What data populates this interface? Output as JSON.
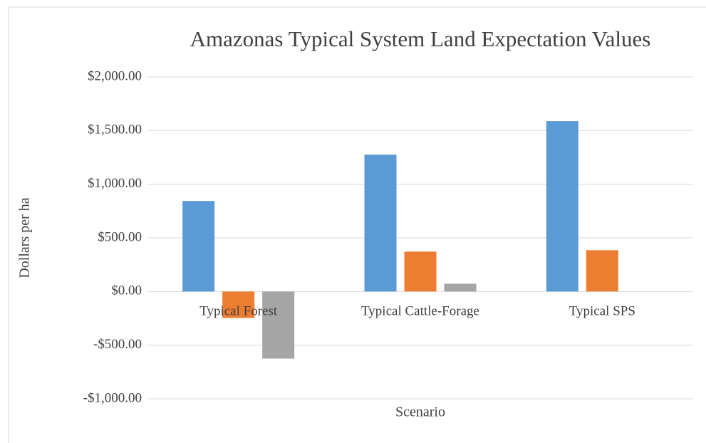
{
  "chart_data": {
    "type": "bar",
    "title": "Amazonas Typical System Land Expectation Values",
    "y_label": "Dollars per ha",
    "x_label": "Scenario",
    "categories": [
      "Typical Forest",
      "Typical Cattle-Forage",
      "Typical SPS"
    ],
    "series": [
      {
        "color": "#5b9bd5",
        "values": [
          844,
          1276,
          1588
        ]
      },
      {
        "color": "#ed7d31",
        "values": [
          -246,
          372,
          385
        ]
      },
      {
        "color": "#a5a5a5",
        "values": [
          -625,
          73,
          0
        ]
      }
    ],
    "ylim": [
      -1000,
      2000
    ],
    "yticks": [
      {
        "value": -1000,
        "label": "-$1,000.00"
      },
      {
        "value": -500,
        "label": "-$500.00"
      },
      {
        "value": 0,
        "label": "$0.00"
      },
      {
        "value": 500,
        "label": "$500.00"
      },
      {
        "value": 1000,
        "label": "$1,000.00"
      },
      {
        "value": 1500,
        "label": "$1,500.00"
      },
      {
        "value": 2000,
        "label": "$2,000.00"
      }
    ],
    "grid": true
  }
}
